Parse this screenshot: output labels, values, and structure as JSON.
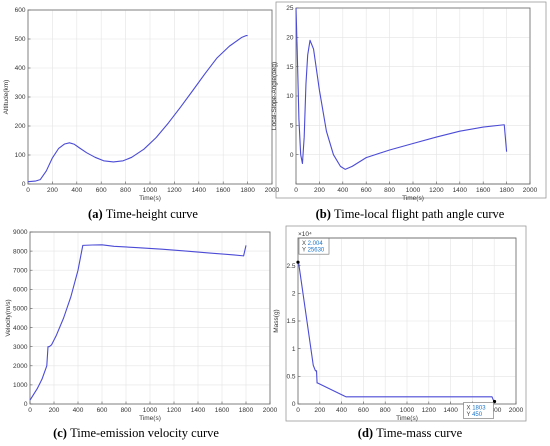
{
  "chart_data": [
    {
      "id": "a",
      "type": "line",
      "caption_letter": "(a)",
      "caption_text": "Time-height curve",
      "xlabel": "Time(s)",
      "ylabel": "Altitude(km)",
      "xlim": [
        0,
        2000
      ],
      "ylim": [
        0,
        600
      ],
      "xticks": [
        0,
        200,
        400,
        600,
        800,
        1000,
        1200,
        1400,
        1600,
        1800,
        2000
      ],
      "yticks": [
        0,
        100,
        200,
        300,
        400,
        500,
        600
      ],
      "color": "#4b4bd6",
      "series": [
        {
          "x": [
            0,
            60,
            100,
            150,
            200,
            250,
            300,
            340,
            380,
            420,
            480,
            550,
            620,
            700,
            780,
            850,
            950,
            1050,
            1150,
            1250,
            1350,
            1450,
            1550,
            1650,
            1750,
            1790,
            1800
          ],
          "y": [
            8,
            10,
            15,
            45,
            90,
            122,
            138,
            142,
            137,
            125,
            108,
            92,
            80,
            76,
            80,
            92,
            120,
            160,
            210,
            265,
            322,
            380,
            435,
            475,
            505,
            512,
            512
          ]
        }
      ]
    },
    {
      "id": "b",
      "type": "line",
      "caption_letter": "(b)",
      "caption_text": "Time-local flight path angle curve",
      "xlabel": "Time(s)",
      "ylabel": "Local-Slope-Angle(deg)",
      "xlim": [
        0,
        2000
      ],
      "ylim": [
        -5,
        25
      ],
      "xticks": [
        0,
        200,
        400,
        600,
        800,
        1000,
        1200,
        1400,
        1600,
        1800,
        2000
      ],
      "yticks": [
        0,
        5,
        10,
        15,
        20,
        25
      ],
      "color": "#4b4bd6",
      "series": [
        {
          "x": [
            0,
            10,
            25,
            40,
            55,
            70,
            85,
            100,
            120,
            150,
            200,
            260,
            320,
            380,
            420,
            480,
            600,
            800,
            1000,
            1200,
            1400,
            1600,
            1780,
            1800
          ],
          "y": [
            25,
            18,
            6,
            0,
            -1.5,
            3,
            12,
            17,
            19.5,
            18,
            11,
            4,
            0,
            -2,
            -2.5,
            -2,
            -0.5,
            0.8,
            1.9,
            3,
            4,
            4.7,
            5.1,
            0.5
          ]
        }
      ]
    },
    {
      "id": "c",
      "type": "line",
      "caption_letter": "(c)",
      "caption_text": "Time-emission velocity curve",
      "xlabel": "Time(s)",
      "ylabel": "Velocity(m/s)",
      "xlim": [
        0,
        2000
      ],
      "ylim": [
        0,
        9000
      ],
      "xticks": [
        0,
        200,
        400,
        600,
        800,
        1000,
        1200,
        1400,
        1600,
        1800,
        2000
      ],
      "yticks": [
        0,
        1000,
        2000,
        3000,
        4000,
        5000,
        6000,
        7000,
        8000,
        9000
      ],
      "color": "#4b4bd6",
      "series": [
        {
          "x": [
            0,
            30,
            60,
            100,
            140,
            150,
            160,
            180,
            220,
            280,
            340,
            400,
            440,
            520,
            600,
            700,
            900,
            1100,
            1300,
            1500,
            1700,
            1780,
            1800
          ],
          "y": [
            200,
            500,
            800,
            1300,
            2000,
            3000,
            3000,
            3100,
            3600,
            4500,
            5600,
            7000,
            8300,
            8320,
            8330,
            8250,
            8180,
            8100,
            8000,
            7900,
            7800,
            7750,
            8300
          ]
        }
      ]
    },
    {
      "id": "d",
      "type": "line",
      "caption_letter": "(d)",
      "caption_text": "Time-mass curve",
      "xlabel": "Time(s)",
      "ylabel": "Mass(g)",
      "exponent": "×10⁴",
      "xlim": [
        0,
        2000
      ],
      "ylim": [
        0,
        3
      ],
      "xticks": [
        0,
        200,
        400,
        600,
        800,
        1000,
        1200,
        1400,
        1600,
        1800,
        2000
      ],
      "yticks": [
        0,
        0.5,
        1,
        1.5,
        2,
        2.5
      ],
      "color": "#4b4bd6",
      "series": [
        {
          "x": [
            0,
            5,
            140,
            160,
            170,
            175,
            180,
            420,
            440,
            1600,
            1780,
            1790,
            1803
          ],
          "y": [
            2.563,
            2.56,
            0.7,
            0.6,
            0.6,
            0.38,
            0.38,
            0.15,
            0.13,
            0.13,
            0.13,
            0.08,
            0.045
          ]
        }
      ],
      "datatips": [
        {
          "x_label": "X",
          "x_value": "2.004",
          "y_label": "Y",
          "y_value": "25630",
          "at_x": 0,
          "at_y": 2.563,
          "side": "right"
        },
        {
          "x_label": "X",
          "x_value": "1803",
          "y_label": "Y",
          "y_value": "450",
          "at_x": 1803,
          "at_y": 0.045,
          "side": "left"
        }
      ]
    }
  ]
}
